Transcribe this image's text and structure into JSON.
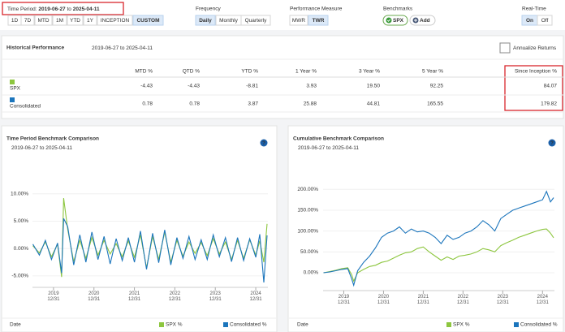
{
  "toolbar": {
    "time_period": {
      "label": "Time Period:",
      "from": "2019-06-27",
      "to_word": "to",
      "to": "2025-04-11"
    },
    "ranges": {
      "options": [
        "1D",
        "7D",
        "MTD",
        "1M",
        "YTD",
        "1Y",
        "INCEPTION",
        "CUSTOM"
      ],
      "active": "CUSTOM"
    },
    "frequency": {
      "label": "Frequency",
      "options": [
        "Daily",
        "Monthly",
        "Quarterly"
      ],
      "active": "Daily"
    },
    "performance_measure": {
      "label": "Performance Measure",
      "options": [
        "MWR",
        "TWR"
      ],
      "active": "TWR"
    },
    "benchmarks": {
      "label": "Benchmarks",
      "items": [
        "SPX",
        "Add"
      ]
    },
    "real_time": {
      "label": "Real-Time",
      "options": [
        "On",
        "Off"
      ],
      "active": "On"
    }
  },
  "historical_performance": {
    "title": "Historical Performance",
    "date_range": "2019-06-27 to 2025-04-11",
    "annualize_label": "Annualize Returns",
    "columns": [
      "MTD %",
      "QTD %",
      "YTD %",
      "1 Year %",
      "3 Year %",
      "5 Year %",
      "Since Inception %"
    ],
    "rows": [
      {
        "name": "SPX",
        "values": [
          "-4.43",
          "-4.43",
          "-8.81",
          "3.93",
          "19.50",
          "92.25",
          "84.07"
        ]
      },
      {
        "name": "Consolidated",
        "values": [
          "0.78",
          "0.78",
          "3.87",
          "25.88",
          "44.81",
          "165.55",
          "179.82"
        ]
      }
    ]
  },
  "help_icon": "?",
  "chart_data": [
    {
      "type": "line",
      "title": "Time Period Benchmark Comparison",
      "subtitle": "2019-06-27 to 2025-04-11",
      "x_label": "Date",
      "x": [
        2019.49,
        2019.65,
        2019.8,
        2019.95,
        2020.1,
        2020.2,
        2020.25,
        2020.35,
        2020.5,
        2020.65,
        2020.8,
        2020.95,
        2021.1,
        2021.25,
        2021.4,
        2021.55,
        2021.7,
        2021.85,
        2022.0,
        2022.15,
        2022.3,
        2022.45,
        2022.6,
        2022.75,
        2022.9,
        2023.05,
        2023.2,
        2023.35,
        2023.5,
        2023.65,
        2023.8,
        2023.95,
        2024.1,
        2024.25,
        2024.4,
        2024.55,
        2024.7,
        2024.85,
        2025.0,
        2025.1,
        2025.2,
        2025.28
      ],
      "xlim": [
        2019.48,
        2025.3
      ],
      "xticks": [
        {
          "value": 2020,
          "label": "2019\n12/31"
        },
        {
          "value": 2021,
          "label": "2020\n12/31"
        },
        {
          "value": 2022,
          "label": "2021\n12/31"
        },
        {
          "value": 2023,
          "label": "2022\n12/31"
        },
        {
          "value": 2024,
          "label": "2023\n12/31"
        },
        {
          "value": 2025,
          "label": "2024\n12/31"
        }
      ],
      "ylim": [
        -6.5,
        11
      ],
      "yticks": [
        {
          "value": 10,
          "label": "10.00%"
        },
        {
          "value": 5,
          "label": "5.00%"
        },
        {
          "value": 0,
          "label": "0.00%"
        },
        {
          "value": -5,
          "label": "-5.00%"
        }
      ],
      "grid": true,
      "series": [
        {
          "name": "SPX %",
          "color": "#8dc63f",
          "values": [
            0.5,
            -0.8,
            1.2,
            -1.5,
            0.8,
            -5.2,
            9.2,
            3.5,
            -2.4,
            1.5,
            -1.8,
            2.0,
            -1.2,
            1.5,
            -1.0,
            0.9,
            -1.5,
            1.4,
            -1.6,
            2.5,
            -3.5,
            2.2,
            -2.0,
            3.0,
            -2.5,
            1.5,
            -1.4,
            1.2,
            -0.9,
            1.1,
            -1.3,
            1.8,
            -1.0,
            1.2,
            -2.0,
            1.5,
            -1.8,
            1.6,
            -1.2,
            1.4,
            -2.5,
            4.5
          ]
        },
        {
          "name": "Consolidated %",
          "color": "#1b75bc",
          "values": [
            0.8,
            -1.2,
            1.5,
            -2.0,
            1.0,
            -4.5,
            5.5,
            4.0,
            -3.0,
            2.5,
            -2.5,
            3.0,
            -2.0,
            2.2,
            -2.8,
            1.8,
            -2.2,
            2.0,
            -2.5,
            3.2,
            -3.8,
            2.8,
            -2.6,
            3.4,
            -3.0,
            2.0,
            -1.8,
            2.2,
            -2.0,
            1.6,
            -2.0,
            2.5,
            -1.5,
            2.0,
            -2.4,
            2.0,
            -2.2,
            1.8,
            -1.6,
            2.6,
            -6.2,
            2.4
          ]
        }
      ]
    },
    {
      "type": "line",
      "title": "Cumulative Benchmark Comparison",
      "subtitle": "2019-06-27 to 2025-04-11",
      "x_label": "Date",
      "x": [
        2019.49,
        2019.65,
        2019.8,
        2019.95,
        2020.1,
        2020.2,
        2020.25,
        2020.35,
        2020.5,
        2020.65,
        2020.8,
        2020.95,
        2021.1,
        2021.25,
        2021.4,
        2021.55,
        2021.7,
        2021.85,
        2022.0,
        2022.15,
        2022.3,
        2022.45,
        2022.6,
        2022.75,
        2022.9,
        2023.05,
        2023.2,
        2023.35,
        2023.5,
        2023.65,
        2023.8,
        2023.95,
        2024.1,
        2024.25,
        2024.4,
        2024.55,
        2024.7,
        2024.85,
        2025.0,
        2025.1,
        2025.2,
        2025.28
      ],
      "xlim": [
        2019.48,
        2025.3
      ],
      "xticks": [
        {
          "value": 2020,
          "label": "2019\n12/31"
        },
        {
          "value": 2021,
          "label": "2020\n12/31"
        },
        {
          "value": 2022,
          "label": "2021\n12/31"
        },
        {
          "value": 2023,
          "label": "2022\n12/31"
        },
        {
          "value": 2024,
          "label": "2023\n12/31"
        },
        {
          "value": 2025,
          "label": "2024\n12/31"
        }
      ],
      "ylim": [
        -35,
        220
      ],
      "yticks": [
        {
          "value": 200,
          "label": "200.00%"
        },
        {
          "value": 150,
          "label": "150.00%"
        },
        {
          "value": 100,
          "label": "100.00%"
        },
        {
          "value": 50,
          "label": "50.00%"
        },
        {
          "value": 0,
          "label": "0.00%"
        }
      ],
      "grid": true,
      "series": [
        {
          "name": "SPX %",
          "color": "#8dc63f",
          "values": [
            0,
            3,
            6,
            10,
            12,
            -5,
            -20,
            0,
            8,
            15,
            18,
            25,
            28,
            35,
            42,
            48,
            50,
            58,
            62,
            50,
            40,
            30,
            38,
            32,
            40,
            42,
            45,
            50,
            58,
            55,
            50,
            65,
            72,
            78,
            85,
            90,
            95,
            100,
            104,
            105,
            95,
            84
          ]
        },
        {
          "name": "Consolidated %",
          "color": "#1b75bc",
          "values": [
            0,
            2,
            5,
            8,
            10,
            -15,
            -30,
            5,
            25,
            40,
            60,
            85,
            95,
            100,
            110,
            95,
            105,
            98,
            100,
            95,
            85,
            70,
            90,
            80,
            85,
            95,
            100,
            110,
            125,
            115,
            100,
            130,
            140,
            150,
            155,
            160,
            165,
            170,
            175,
            195,
            170,
            180
          ]
        }
      ]
    }
  ]
}
